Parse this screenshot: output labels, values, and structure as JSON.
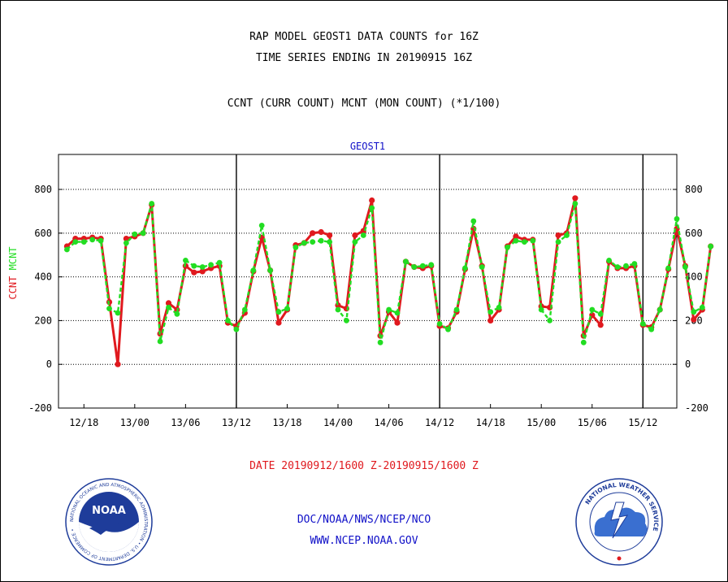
{
  "header": {
    "line1": "RAP MODEL GEOST1 DATA COUNTS for 16Z",
    "line2": "TIME SERIES ENDING IN 20190915 16Z",
    "line3": "CCNT (CURR COUNT) MCNT (MON COUNT) (*1/100)"
  },
  "footer": {
    "date_range": "DATE 20190912/1600 Z-20190915/1600 Z",
    "org": "DOC/NOAA/NWS/NCEP/NCO",
    "url": "WWW.NCEP.NOAA.GOV"
  },
  "logos": {
    "noaa_label": "NOAA",
    "noaa_ring": "NATIONAL OCEANIC AND ATMOSPHERIC ADMINISTRATION • U.S. DEPARTMENT OF COMMERCE •",
    "nws_ring": "NATIONAL WEATHER SERVICE"
  },
  "colors": {
    "ccnt": "#e0191e",
    "mcnt": "#22dd22",
    "title_blue": "#1010c8",
    "footer_red": "#e0191e",
    "footer_blue": "#1010c8"
  },
  "chart_data": {
    "type": "line",
    "title": "GEOST1",
    "ylabel_parts": [
      {
        "text": "CCNT",
        "color": "#e0191e"
      },
      {
        "text": "MCNT",
        "color": "#22dd22"
      }
    ],
    "x_start_hour": 0,
    "x_end_hour": 72,
    "xlim": [
      -1,
      72
    ],
    "ylim": [
      -200,
      960
    ],
    "yticks": [
      -200,
      0,
      200,
      400,
      600,
      800
    ],
    "xticks": [
      {
        "hour": 2,
        "label": "12/18"
      },
      {
        "hour": 8,
        "label": "13/00"
      },
      {
        "hour": 14,
        "label": "13/06"
      },
      {
        "hour": 20,
        "label": "13/12"
      },
      {
        "hour": 26,
        "label": "13/18"
      },
      {
        "hour": 32,
        "label": "14/00"
      },
      {
        "hour": 38,
        "label": "14/06"
      },
      {
        "hour": 44,
        "label": "14/12"
      },
      {
        "hour": 50,
        "label": "14/18"
      },
      {
        "hour": 56,
        "label": "15/00"
      },
      {
        "hour": 62,
        "label": "15/06"
      },
      {
        "hour": 68,
        "label": "15/12"
      }
    ],
    "day_markers": [
      20,
      44,
      68
    ],
    "grid_y": [
      0,
      200,
      400,
      600,
      800
    ],
    "series": [
      {
        "name": "CCNT",
        "color": "#e0191e",
        "values": [
          540,
          575,
          575,
          580,
          575,
          285,
          0,
          575,
          585,
          600,
          730,
          140,
          280,
          250,
          450,
          420,
          425,
          440,
          450,
          190,
          175,
          235,
          425,
          580,
          430,
          190,
          250,
          545,
          555,
          600,
          605,
          590,
          270,
          255,
          590,
          610,
          750,
          130,
          240,
          190,
          470,
          445,
          440,
          450,
          175,
          165,
          240,
          435,
          620,
          450,
          200,
          250,
          540,
          585,
          570,
          570,
          265,
          260,
          590,
          600,
          760,
          130,
          225,
          180,
          470,
          440,
          440,
          450,
          180,
          170,
          250,
          435,
          620,
          450,
          205,
          250,
          540
        ]
      },
      {
        "name": "MCNT",
        "color": "#22dd22",
        "values": [
          525,
          560,
          560,
          570,
          565,
          255,
          235,
          555,
          595,
          600,
          735,
          105,
          260,
          230,
          475,
          450,
          445,
          455,
          465,
          200,
          160,
          250,
          430,
          635,
          430,
          240,
          255,
          535,
          555,
          560,
          565,
          560,
          250,
          200,
          560,
          590,
          715,
          100,
          250,
          235,
          470,
          445,
          450,
          455,
          185,
          160,
          250,
          440,
          655,
          445,
          240,
          260,
          535,
          565,
          560,
          565,
          250,
          200,
          560,
          590,
          735,
          100,
          250,
          230,
          475,
          445,
          450,
          460,
          185,
          160,
          250,
          440,
          665,
          445,
          240,
          260,
          540
        ]
      }
    ]
  }
}
